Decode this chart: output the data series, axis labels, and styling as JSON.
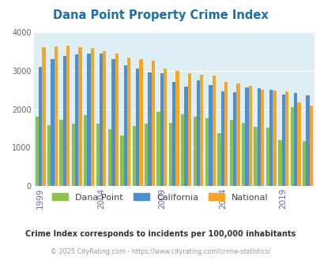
{
  "title": "Dana Point Property Crime Index",
  "title_color": "#1a6faf",
  "years": [
    1999,
    2000,
    2001,
    2002,
    2003,
    2004,
    2005,
    2006,
    2007,
    2008,
    2009,
    2010,
    2011,
    2012,
    2013,
    2014,
    2015,
    2016,
    2017,
    2018,
    2019,
    2020,
    2021
  ],
  "dana_point": [
    1800,
    1580,
    1720,
    1620,
    1850,
    1620,
    1480,
    1310,
    1560,
    1630,
    1920,
    1650,
    1870,
    1800,
    1760,
    1380,
    1720,
    1640,
    1550,
    1520,
    1190,
    2050,
    1180
  ],
  "california": [
    3100,
    3300,
    3380,
    3440,
    3450,
    3450,
    3310,
    3150,
    3060,
    2950,
    2940,
    2720,
    2590,
    2760,
    2620,
    2470,
    2450,
    2570,
    2540,
    2510,
    2380,
    2430,
    2360
  ],
  "national": [
    3610,
    3640,
    3660,
    3620,
    3590,
    3520,
    3460,
    3350,
    3300,
    3270,
    3060,
    2990,
    2940,
    2900,
    2870,
    2720,
    2660,
    2610,
    2510,
    2480,
    2460,
    2170,
    2090
  ],
  "dana_color": "#8bc34a",
  "california_color": "#4a90d9",
  "national_color": "#f5a623",
  "bg_color": "#ddeef5",
  "ylim": [
    0,
    4000
  ],
  "yticks": [
    0,
    1000,
    2000,
    3000,
    4000
  ],
  "x_tick_years": [
    1999,
    2004,
    2009,
    2014,
    2019
  ],
  "xlabel_color": "#6666aa",
  "subtitle": "Crime Index corresponds to incidents per 100,000 inhabitants",
  "footer": "© 2025 CityRating.com - https://www.cityrating.com/crime-statistics/",
  "legend_labels": [
    "Dana Point",
    "California",
    "National"
  ],
  "legend_text_color": "#444444",
  "bar_width": 0.28
}
